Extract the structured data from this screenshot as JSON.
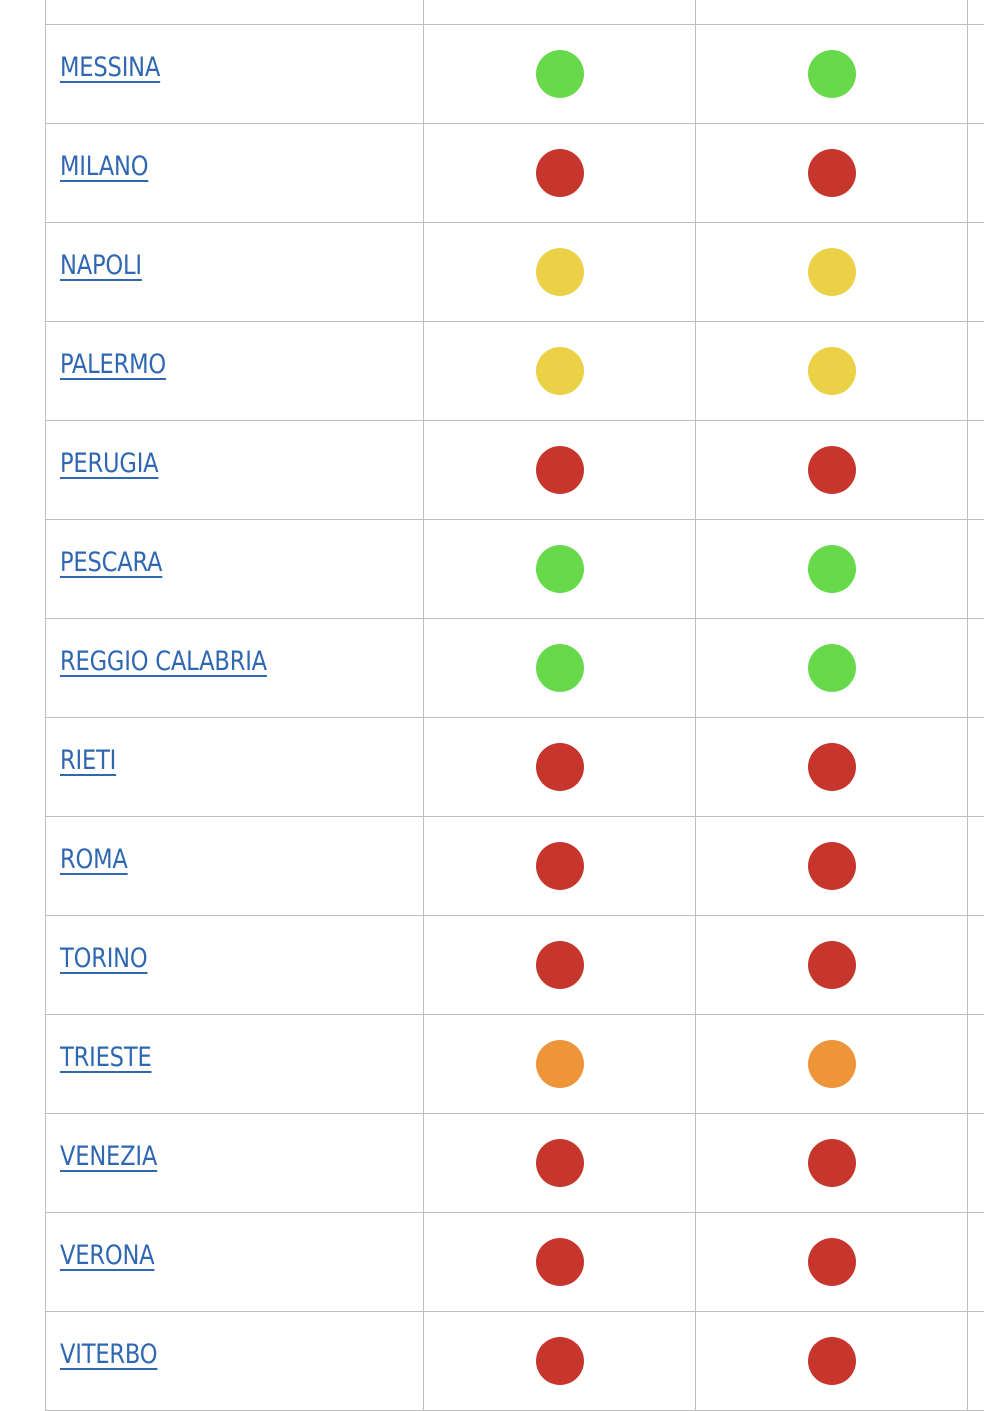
{
  "colors": {
    "green": "#67d94a",
    "red": "#c6362d",
    "yellow": "#ebd147",
    "orange": "#ee9537",
    "link": "#2f67b2",
    "border": "#bdbdbd"
  },
  "rows": [
    {
      "city": "",
      "status1": "",
      "status2": ""
    },
    {
      "city": "MESSINA",
      "status1": "green",
      "status2": "green"
    },
    {
      "city": "MILANO",
      "status1": "red",
      "status2": "red"
    },
    {
      "city": "NAPOLI",
      "status1": "yellow",
      "status2": "yellow"
    },
    {
      "city": "PALERMO",
      "status1": "yellow",
      "status2": "yellow"
    },
    {
      "city": "PERUGIA",
      "status1": "red",
      "status2": "red"
    },
    {
      "city": "PESCARA",
      "status1": "green",
      "status2": "green"
    },
    {
      "city": "REGGIO CALABRIA",
      "status1": "green",
      "status2": "green"
    },
    {
      "city": "RIETI",
      "status1": "red",
      "status2": "red"
    },
    {
      "city": "ROMA",
      "status1": "red",
      "status2": "red"
    },
    {
      "city": "TORINO",
      "status1": "red",
      "status2": "red"
    },
    {
      "city": "TRIESTE",
      "status1": "orange",
      "status2": "orange"
    },
    {
      "city": "VENEZIA",
      "status1": "red",
      "status2": "red"
    },
    {
      "city": "VERONA",
      "status1": "red",
      "status2": "red"
    },
    {
      "city": "VITERBO",
      "status1": "red",
      "status2": "red"
    }
  ]
}
